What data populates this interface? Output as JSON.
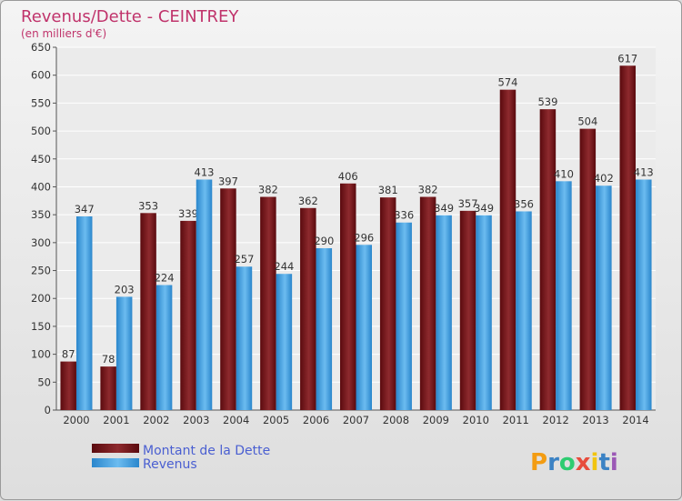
{
  "chart_data": {
    "type": "bar",
    "title": "Revenus/Dette - CEINTREY",
    "subtitle": "(en milliers d'€)",
    "categories": [
      "2000",
      "2001",
      "2002",
      "2003",
      "2004",
      "2005",
      "2006",
      "2007",
      "2008",
      "2009",
      "2010",
      "2011",
      "2012",
      "2013",
      "2014"
    ],
    "series": [
      {
        "name": "Montant de la Dette",
        "color": "#7a1016",
        "values": [
          87,
          78,
          353,
          339,
          397,
          382,
          362,
          406,
          381,
          382,
          357,
          574,
          539,
          504,
          617
        ]
      },
      {
        "name": "Revenus",
        "color": "#3fa0e0",
        "values": [
          347,
          203,
          224,
          413,
          257,
          244,
          290,
          296,
          336,
          349,
          349,
          356,
          410,
          402,
          413
        ]
      }
    ],
    "ylim": [
      0,
      650
    ],
    "yticks": [
      0,
      50,
      100,
      150,
      200,
      250,
      300,
      350,
      400,
      450,
      500,
      550,
      600,
      650
    ],
    "grid": true,
    "legend": "bottom-left"
  },
  "logo": {
    "letters": [
      "P",
      "r",
      "o",
      "x",
      "i",
      "t",
      "i"
    ],
    "colors": [
      "#f39c12",
      "#3b82c4",
      "#2ecc71",
      "#e74c3c",
      "#f1c40f",
      "#3b82c4",
      "#9b59b6"
    ]
  }
}
